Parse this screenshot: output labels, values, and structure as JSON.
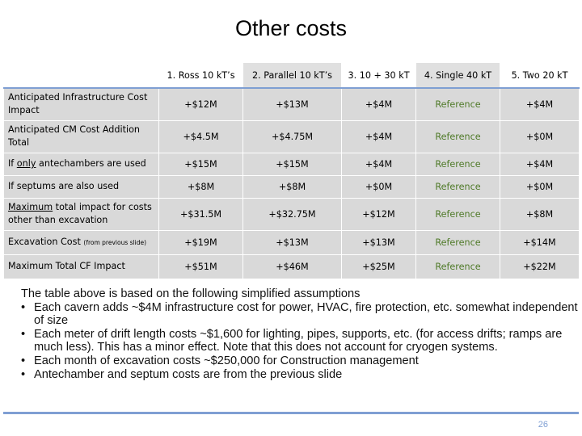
{
  "slide": {
    "title": "Other costs",
    "page_number": "26"
  },
  "table": {
    "headers": [
      "1. Ross 10 kT’s",
      "2. Parallel 10 kT’s",
      "3. 10 + 30 kT",
      "4. Single 40 kT",
      "5. Two 20 kT"
    ],
    "rows": [
      {
        "label": "Anticipated Infrastructure Cost Impact",
        "values": [
          "+$12M",
          "+$13M",
          "+$4M",
          "Reference",
          "+$4M"
        ]
      },
      {
        "label": "Anticipated CM Cost Addition Total",
        "values": [
          "+$4.5M",
          "+$4.75M",
          "+$4M",
          "Reference",
          "+$0M"
        ]
      },
      {
        "label_prefix": "If ",
        "label_underlined": "only",
        "label_suffix": " antechambers are used",
        "values": [
          "+$15M",
          "+$15M",
          "+$4M",
          "Reference",
          "+$4M"
        ]
      },
      {
        "label": "If septums are also used",
        "values": [
          "+$8M",
          "+$8M",
          "+$0M",
          "Reference",
          "+$0M"
        ]
      },
      {
        "label_underlined": "Maximum",
        "label_suffix": " total impact for costs other than excavation",
        "values": [
          "+$31.5M",
          "+$32.75M",
          "+$12M",
          "Reference",
          "+$8M"
        ]
      },
      {
        "label": "Excavation Cost",
        "label_small": "(from previous slide)",
        "values": [
          "+$19M",
          "+$13M",
          "+$13M",
          "Reference",
          "+$14M"
        ]
      },
      {
        "label": "Maximum Total CF Impact",
        "values": [
          "+$51M",
          "+$46M",
          "+$25M",
          "Reference",
          "+$22M"
        ]
      }
    ],
    "reference_color": "#4f7a28"
  },
  "notes": {
    "intro": "The table above is based on the following simplified assumptions",
    "bullets": [
      "Each cavern adds ~$4M infrastructure cost for power, HVAC, fire protection, etc. somewhat independent of size",
      "Each meter of drift length costs ~$1,600 for lighting, pipes, supports, etc. (for access drifts; ramps are much less).  This has a minor effect.  Note that this does not account for cryogen systems.",
      "Each month of excavation costs ~$250,000 for Construction management",
      "Antechamber and septum costs are from the previous slide"
    ]
  },
  "colors": {
    "accent_line": "#7f9fd3",
    "cell_light": "#d9d9d9",
    "cell_dark": "#bfbfbf"
  }
}
